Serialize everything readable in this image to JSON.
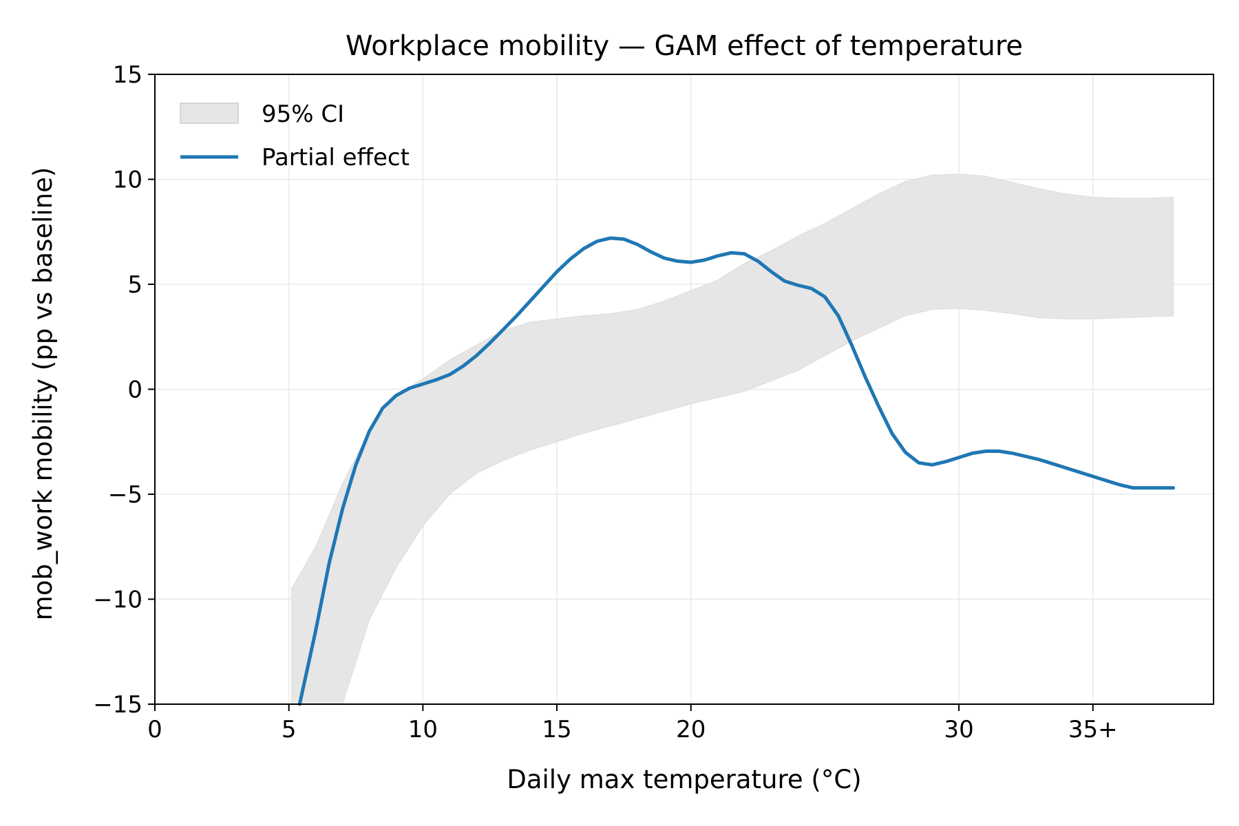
{
  "chart_data": {
    "type": "line",
    "title": "Workplace mobility — GAM effect of temperature",
    "xlabel": "Daily max temperature (°C)",
    "ylabel": "mob_work mobility (pp vs baseline)",
    "xlim": [
      0,
      39.5
    ],
    "ylim": [
      -15,
      15
    ],
    "x_ticks": [
      {
        "value": 0,
        "label": "0"
      },
      {
        "value": 5,
        "label": "5"
      },
      {
        "value": 10,
        "label": "10"
      },
      {
        "value": 15,
        "label": "15"
      },
      {
        "value": 20,
        "label": "20"
      },
      {
        "value": 30,
        "label": "30"
      },
      {
        "value": 35,
        "label": "35+"
      }
    ],
    "y_ticks": [
      {
        "value": 15,
        "label": "15"
      },
      {
        "value": 10,
        "label": "10"
      },
      {
        "value": 5,
        "label": "5"
      },
      {
        "value": 0,
        "label": "0"
      },
      {
        "value": -5,
        "label": "−5"
      },
      {
        "value": -10,
        "label": "−10"
      },
      {
        "value": -15,
        "label": "−15"
      }
    ],
    "grid": true,
    "legend": {
      "placement": "top-left",
      "entries": [
        {
          "label": "95% CI",
          "kind": "band",
          "color": "#e6e6e6"
        },
        {
          "label": "Partial effect",
          "kind": "line",
          "color": "#1f77b4"
        }
      ]
    },
    "series": [
      {
        "name": "Partial effect",
        "color": "#1f77b4",
        "x": [
          5.4,
          6.0,
          6.5,
          7.0,
          7.5,
          8.0,
          8.5,
          9.0,
          9.5,
          10.0,
          10.5,
          11.0,
          11.5,
          12.0,
          12.5,
          13.0,
          13.5,
          14.0,
          14.5,
          15.0,
          15.5,
          16.0,
          16.5,
          17.0,
          17.5,
          18.0,
          18.5,
          19.0,
          19.5,
          20.0,
          20.5,
          21.0,
          21.5,
          22.0,
          22.5,
          23.0,
          23.5,
          24.0,
          24.5,
          25.0,
          25.5,
          26.0,
          26.5,
          27.0,
          27.5,
          28.0,
          28.5,
          29.0,
          29.5,
          30.0,
          30.5,
          31.0,
          31.5,
          32.0,
          32.5,
          33.0,
          33.5,
          34.0,
          34.5,
          35.0,
          35.5,
          36.0,
          36.5,
          37.0,
          37.5,
          38.0
        ],
        "y": [
          -15.0,
          -11.5,
          -8.3,
          -5.7,
          -3.6,
          -2.0,
          -0.9,
          -0.3,
          0.05,
          0.25,
          0.45,
          0.7,
          1.1,
          1.6,
          2.2,
          2.85,
          3.5,
          4.2,
          4.9,
          5.6,
          6.2,
          6.7,
          7.05,
          7.2,
          7.15,
          6.9,
          6.55,
          6.25,
          6.1,
          6.05,
          6.15,
          6.35,
          6.5,
          6.45,
          6.1,
          5.6,
          5.15,
          4.95,
          4.8,
          4.4,
          3.5,
          2.1,
          0.6,
          -0.8,
          -2.1,
          -3.0,
          -3.5,
          -3.6,
          -3.45,
          -3.25,
          -3.05,
          -2.95,
          -2.95,
          -3.05,
          -3.2,
          -3.35,
          -3.55,
          -3.75,
          -3.95,
          -4.15,
          -4.35,
          -4.55,
          -4.7,
          -4.7,
          -4.7,
          -4.7
        ]
      }
    ],
    "bands": [
      {
        "name": "95% CI",
        "color": "#e6e6e6",
        "x": [
          5.1,
          6.0,
          7.0,
          8.0,
          9.0,
          10.0,
          11.0,
          12.0,
          13.0,
          14.0,
          15.0,
          16.0,
          17.0,
          18.0,
          19.0,
          20.0,
          21.0,
          22.0,
          23.0,
          24.0,
          25.0,
          26.0,
          27.0,
          28.0,
          29.0,
          30.0,
          31.0,
          32.0,
          33.0,
          34.0,
          35.0,
          36.0,
          37.0,
          38.0
        ],
        "lower": [
          -15.0,
          -15.0,
          -15.0,
          -11.0,
          -8.5,
          -6.5,
          -5.0,
          -4.0,
          -3.4,
          -2.9,
          -2.5,
          -2.1,
          -1.75,
          -1.4,
          -1.05,
          -0.7,
          -0.4,
          -0.1,
          0.4,
          0.9,
          1.6,
          2.3,
          2.9,
          3.5,
          3.8,
          3.85,
          3.75,
          3.6,
          3.4,
          3.35,
          3.35,
          3.4,
          3.45,
          3.5
        ],
        "upper": [
          -9.5,
          -7.5,
          -4.5,
          -2.0,
          -0.3,
          0.5,
          1.4,
          2.1,
          2.8,
          3.2,
          3.35,
          3.5,
          3.6,
          3.8,
          4.2,
          4.7,
          5.2,
          6.0,
          6.6,
          7.3,
          7.9,
          8.6,
          9.3,
          9.9,
          10.2,
          10.25,
          10.15,
          9.85,
          9.55,
          9.3,
          9.15,
          9.1,
          9.1,
          9.15
        ]
      }
    ]
  }
}
